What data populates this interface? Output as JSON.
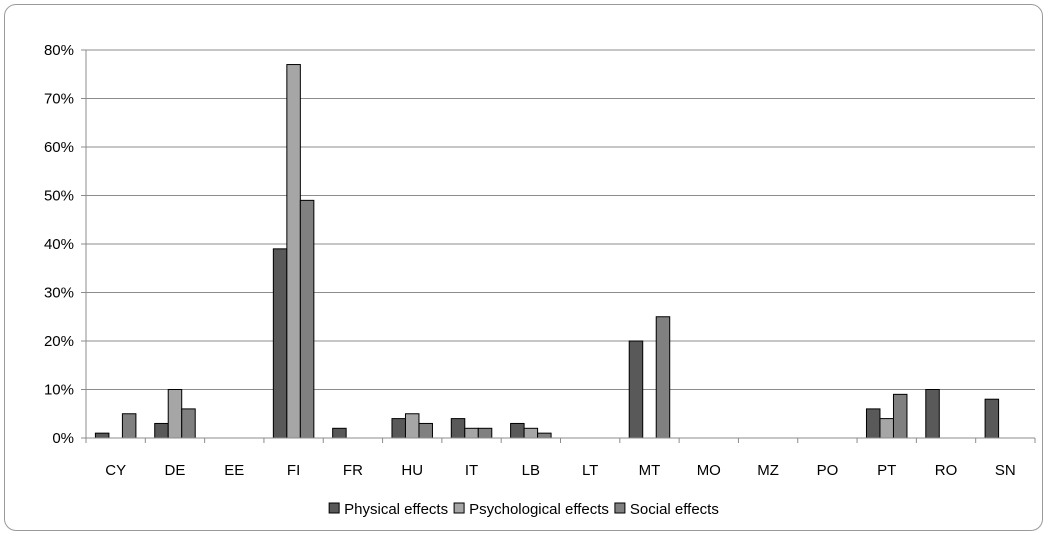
{
  "chart_data": {
    "type": "bar",
    "categories": [
      "CY",
      "DE",
      "EE",
      "FI",
      "FR",
      "HU",
      "IT",
      "LB",
      "LT",
      "MT",
      "MO",
      "MZ",
      "PO",
      "PT",
      "RO",
      "SN"
    ],
    "series": [
      {
        "name": "Physical effects",
        "color": "#595959",
        "values": [
          1,
          3,
          0,
          39,
          2,
          4,
          4,
          3,
          0,
          20,
          0,
          0,
          0,
          6,
          10,
          8
        ]
      },
      {
        "name": "Psychological effects",
        "color": "#a6a6a6",
        "values": [
          0,
          10,
          0,
          77,
          0,
          5,
          2,
          2,
          0,
          0,
          0,
          0,
          0,
          4,
          0,
          0
        ]
      },
      {
        "name": "Social effects",
        "color": "#808080",
        "values": [
          5,
          6,
          0,
          49,
          0,
          3,
          2,
          1,
          0,
          25,
          0,
          0,
          0,
          9,
          0,
          0
        ]
      }
    ],
    "ylim": [
      0,
      80
    ],
    "yticks": [
      0,
      10,
      20,
      30,
      40,
      50,
      60,
      70,
      80
    ],
    "ytick_labels": [
      "0%",
      "10%",
      "20%",
      "30%",
      "40%",
      "50%",
      "60%",
      "70%",
      "80%"
    ],
    "grid": true,
    "legend_position": "bottom"
  }
}
